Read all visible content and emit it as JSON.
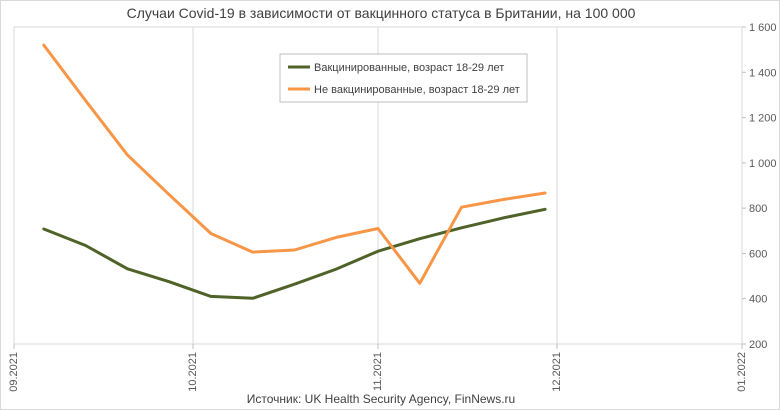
{
  "chart_data": {
    "type": "line",
    "title": "Случаи Covid-19 в зависимости от вакцинного статуса в Британии, на 100 000",
    "source": "Источник: UK Health Security Agency, FinNews.ru",
    "x_ticks": [
      "09.2021",
      "10.2021",
      "11.2021",
      "12.2021",
      "01.2022"
    ],
    "x_tick_dates": [
      "2021-09-01",
      "2021-10-01",
      "2021-11-01",
      "2021-12-01",
      "2022-01-01"
    ],
    "y_ticks": [
      "200",
      "400",
      "600",
      "800",
      "1 000",
      "1 200",
      "1 400",
      "1 600"
    ],
    "ylim": [
      200,
      1600
    ],
    "y_axis_position": "right",
    "grid": "vertical",
    "legend_position": "top-center",
    "series": [
      {
        "name": "Вакцинированные, возраст 18-29 лет",
        "color": "#4f6228",
        "x": [
          "2021-09-06",
          "2021-09-13",
          "2021-09-20",
          "2021-09-27",
          "2021-10-04",
          "2021-10-11",
          "2021-10-18",
          "2021-10-25",
          "2021-11-01",
          "2021-11-08",
          "2021-11-15",
          "2021-11-22",
          "2021-11-29"
        ],
        "values": [
          708,
          635,
          532,
          475,
          410,
          402,
          464,
          531,
          610,
          665,
          713,
          757,
          795
        ]
      },
      {
        "name": "Не вакцинированные, возраст 18-29 лет",
        "color": "#f79646",
        "x": [
          "2021-09-06",
          "2021-09-13",
          "2021-09-20",
          "2021-09-27",
          "2021-10-04",
          "2021-10-11",
          "2021-10-18",
          "2021-10-25",
          "2021-11-01",
          "2021-11-08",
          "2021-11-15",
          "2021-11-22",
          "2021-11-29"
        ],
        "values": [
          1520,
          1275,
          1035,
          860,
          688,
          606,
          615,
          671,
          710,
          468,
          804,
          838,
          867
        ]
      }
    ]
  }
}
